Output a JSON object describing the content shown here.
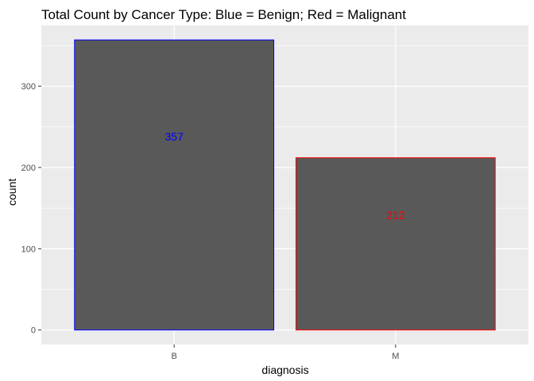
{
  "chart_data": {
    "type": "bar",
    "title": "Total Count by Cancer Type: Blue = Benign; Red = Malignant",
    "xlabel": "diagnosis",
    "ylabel": "count",
    "categories": [
      "B",
      "M"
    ],
    "values": [
      357,
      212
    ],
    "labels": [
      "357",
      "212"
    ],
    "ylim": [
      -17.85,
      374.85
    ],
    "yticks": [
      0,
      100,
      200,
      300
    ],
    "ytick_labels": [
      "0",
      "100",
      "200",
      "300"
    ],
    "grid": true,
    "bar_fill": "#595959",
    "bar_outline_colors": [
      "#0000ff",
      "#ff0000"
    ],
    "label_colors": [
      "#0000ff",
      "#ff0000"
    ],
    "panel_background": "#ebebeb",
    "gridline_color": "#ffffff"
  }
}
